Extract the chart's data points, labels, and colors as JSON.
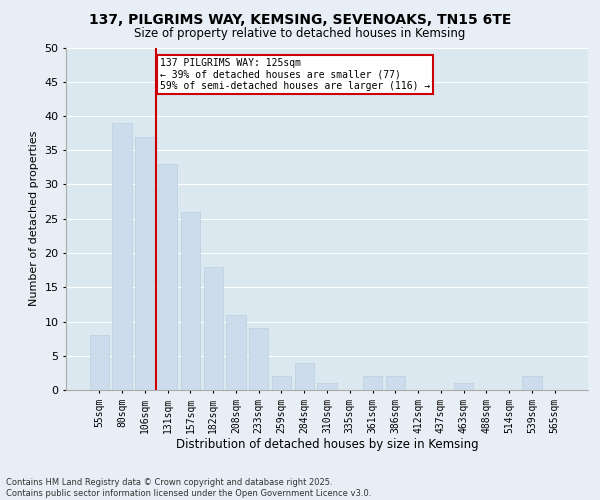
{
  "title1": "137, PILGRIMS WAY, KEMSING, SEVENOAKS, TN15 6TE",
  "title2": "Size of property relative to detached houses in Kemsing",
  "xlabel": "Distribution of detached houses by size in Kemsing",
  "ylabel": "Number of detached properties",
  "categories": [
    "55sqm",
    "80sqm",
    "106sqm",
    "131sqm",
    "157sqm",
    "182sqm",
    "208sqm",
    "233sqm",
    "259sqm",
    "284sqm",
    "310sqm",
    "335sqm",
    "361sqm",
    "386sqm",
    "412sqm",
    "437sqm",
    "463sqm",
    "488sqm",
    "514sqm",
    "539sqm",
    "565sqm"
  ],
  "values": [
    8,
    39,
    37,
    33,
    26,
    18,
    11,
    9,
    2,
    4,
    1,
    0,
    2,
    2,
    0,
    0,
    1,
    0,
    0,
    2,
    0
  ],
  "bar_color": "#ccdcec",
  "bar_edgecolor": "#b8cfe0",
  "vline_x_index": 2.5,
  "vline_color": "#cc0000",
  "annotation_text": "137 PILGRIMS WAY: 125sqm\n← 39% of detached houses are smaller (77)\n59% of semi-detached houses are larger (116) →",
  "annotation_box_color": "#cc0000",
  "ylim": [
    0,
    50
  ],
  "yticks": [
    0,
    5,
    10,
    15,
    20,
    25,
    30,
    35,
    40,
    45,
    50
  ],
  "bg_color": "#e8eef5",
  "plot_bg_color": "#dce8f0",
  "grid_color": "#ffffff",
  "footnote": "Contains HM Land Registry data © Crown copyright and database right 2025.\nContains public sector information licensed under the Open Government Licence v3.0."
}
